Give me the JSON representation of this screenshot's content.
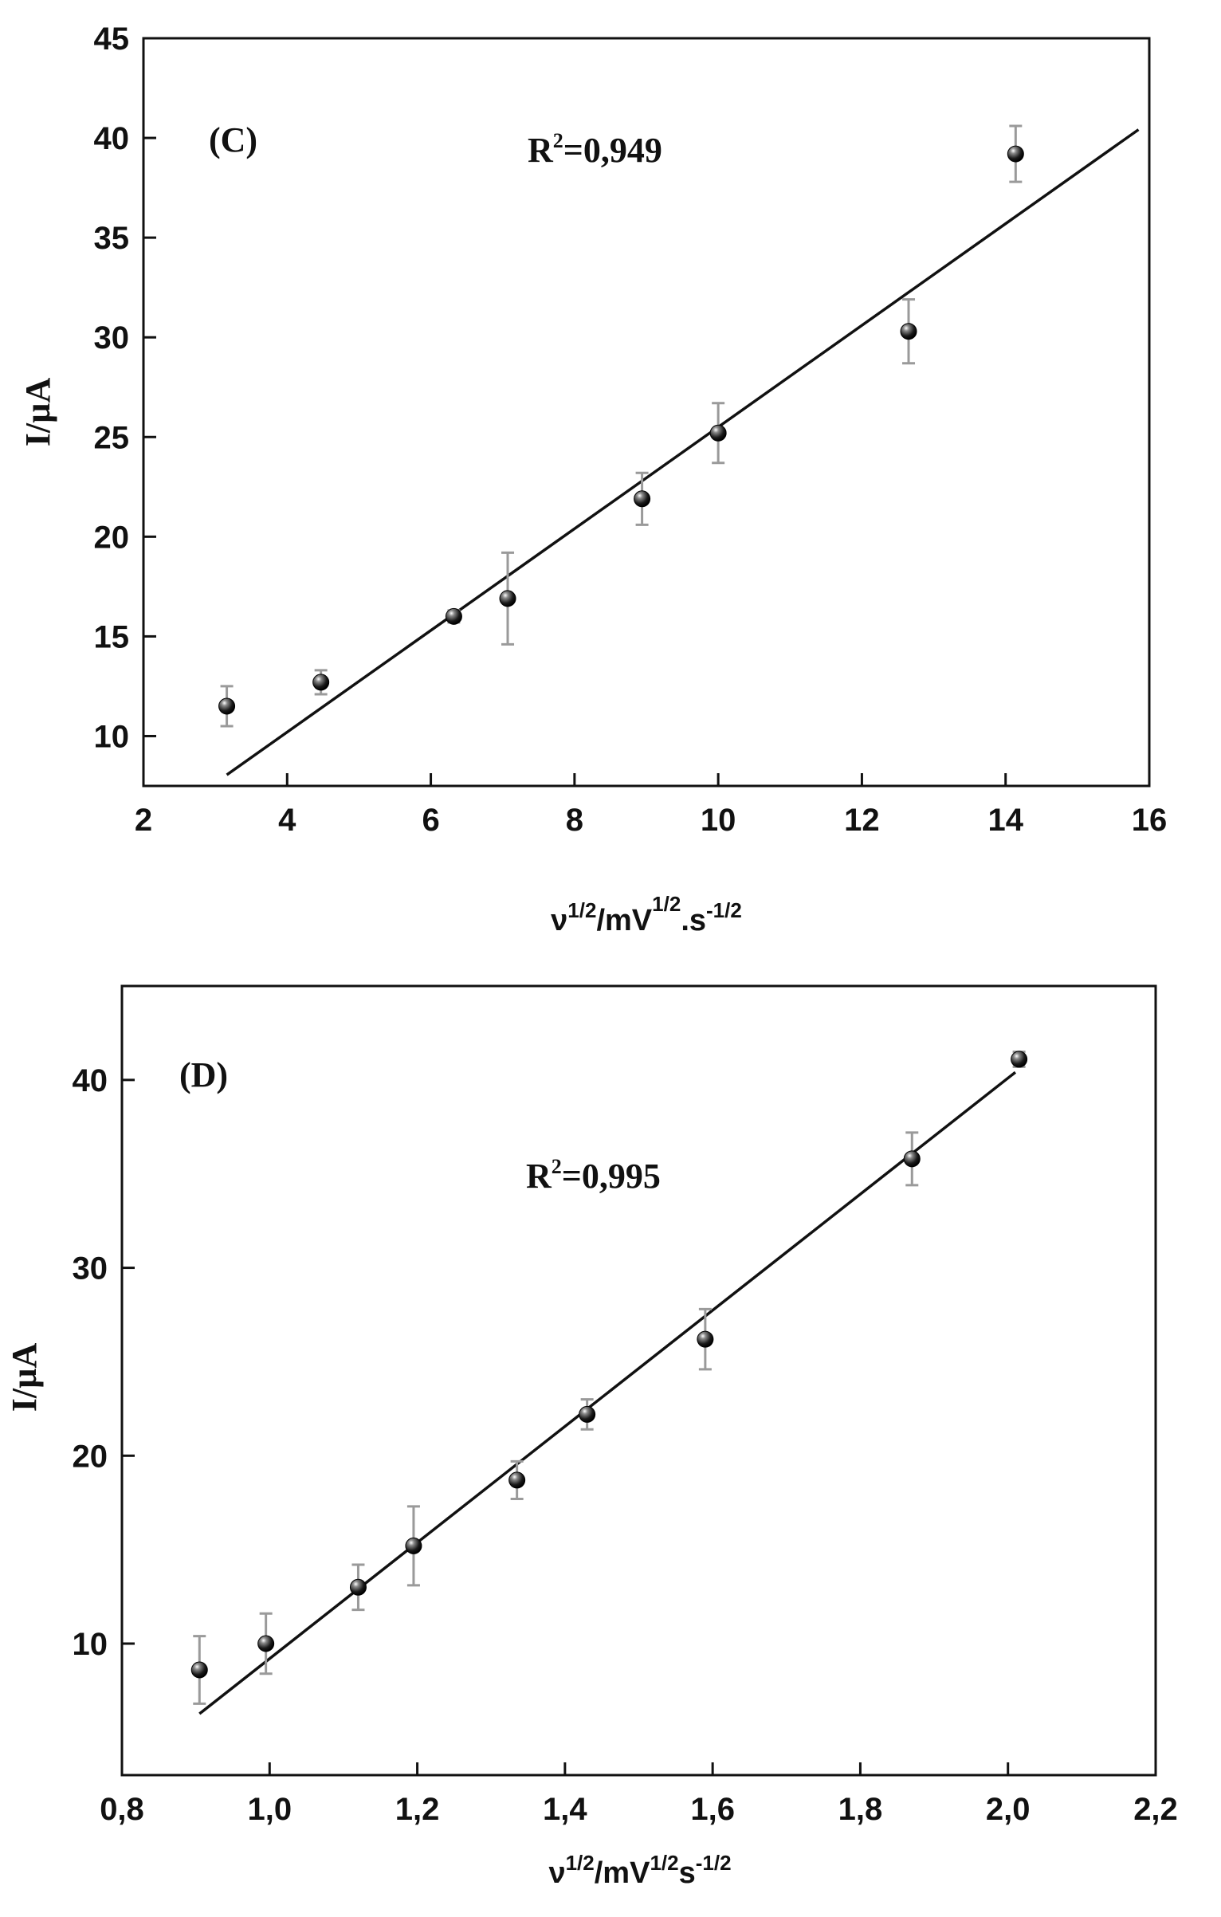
{
  "chart_data": [
    {
      "type": "scatter",
      "panel_label": "(C)",
      "annotation": {
        "prefix": "R",
        "sup": "2",
        "value": "=0,949"
      },
      "xlabel": {
        "base": "ν",
        "sup1": "1/2",
        "mid": "/mV",
        "sup2": "1/2",
        "tail": ".s",
        "sup3": "-1/2"
      },
      "ylabel": "I/µA",
      "xlim": [
        2,
        16
      ],
      "ylim": [
        7.5,
        45
      ],
      "xticks": [
        2,
        4,
        6,
        8,
        10,
        12,
        14,
        16
      ],
      "xtick_labels": [
        "2",
        "4",
        "6",
        "8",
        "10",
        "12",
        "14",
        "16"
      ],
      "yticks": [
        10,
        15,
        20,
        25,
        30,
        35,
        40,
        45
      ],
      "ytick_labels": [
        "10",
        "15",
        "20",
        "25",
        "30",
        "35",
        "40",
        "45"
      ],
      "grid": false,
      "points": [
        {
          "x": 3.16,
          "y": 11.5,
          "err": 1.0
        },
        {
          "x": 4.47,
          "y": 12.7,
          "err": 0.6
        },
        {
          "x": 6.32,
          "y": 16.0,
          "err": 0.3
        },
        {
          "x": 7.07,
          "y": 16.9,
          "err": 2.3
        },
        {
          "x": 8.94,
          "y": 21.9,
          "err": 1.3
        },
        {
          "x": 10.0,
          "y": 25.2,
          "err": 1.5
        },
        {
          "x": 12.65,
          "y": 30.3,
          "err": 1.6
        },
        {
          "x": 14.14,
          "y": 39.2,
          "err": 1.4
        }
      ],
      "fit": {
        "slope": 2.55,
        "intercept": 0.0,
        "x_range": [
          3.16,
          15.85
        ]
      }
    },
    {
      "type": "scatter",
      "panel_label": "(D)",
      "annotation": {
        "prefix": "R",
        "sup": "2",
        "value": "=0,995"
      },
      "xlabel": {
        "base": "ν",
        "sup1": "1/2",
        "mid": "/mV",
        "sup2": "1/2",
        "tail": "s",
        "sup3": "-1/2"
      },
      "ylabel": "I/µA",
      "xlim": [
        0.8,
        2.2
      ],
      "ylim": [
        3,
        45
      ],
      "xticks": [
        0.8,
        1.0,
        1.2,
        1.4,
        1.6,
        1.8,
        2.0,
        2.2
      ],
      "xtick_labels": [
        "0,8",
        "1,0",
        "1,2",
        "1,4",
        "1,6",
        "1,8",
        "2,0",
        "2,2"
      ],
      "yticks": [
        10,
        20,
        30,
        40
      ],
      "ytick_labels": [
        "10",
        "20",
        "30",
        "40"
      ],
      "grid": false,
      "points": [
        {
          "x": 0.905,
          "y": 8.6,
          "err": 1.8
        },
        {
          "x": 0.995,
          "y": 10.0,
          "err": 1.6
        },
        {
          "x": 1.12,
          "y": 13.0,
          "err": 1.2
        },
        {
          "x": 1.195,
          "y": 15.2,
          "err": 2.1
        },
        {
          "x": 1.335,
          "y": 18.7,
          "err": 1.0
        },
        {
          "x": 1.43,
          "y": 22.2,
          "err": 0.8
        },
        {
          "x": 1.59,
          "y": 26.2,
          "err": 1.6
        },
        {
          "x": 1.87,
          "y": 35.8,
          "err": 1.4
        },
        {
          "x": 2.015,
          "y": 41.1,
          "err": 0.4
        }
      ],
      "fit": {
        "slope": 30.9,
        "intercept": -21.7,
        "x_range": [
          0.905,
          2.01
        ]
      }
    }
  ]
}
